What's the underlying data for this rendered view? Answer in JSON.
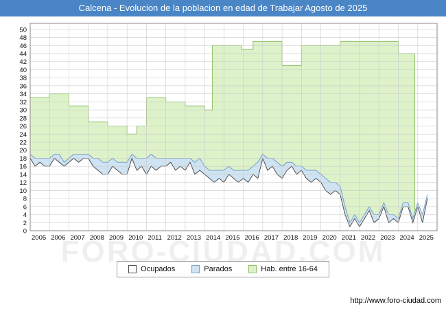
{
  "title": "Calcena - Evolucion de la poblacion en edad de Trabajar Agosto de 2025",
  "watermark": "FORO-CIUDAD.COM",
  "footer": {
    "url": "http://www.foro-ciudad.com"
  },
  "colors": {
    "title_bar": "#4a86c6",
    "grid": "#c8c8c8",
    "axis_border": "#888888",
    "ocupados_stroke": "#4d4d4d",
    "ocupados_fill": "#ffffff",
    "parados_stroke": "#74a0c8",
    "parados_fill": "#cfe3f2",
    "hab_stroke": "#8fbf64",
    "hab_fill": "#ddf2c9"
  },
  "chart_data": {
    "type": "area",
    "title": "Calcena - Evolucion de la poblacion en edad de Trabajar Agosto de 2025",
    "xlabel": "",
    "ylabel": "",
    "grid": true,
    "legend_position": "bottom",
    "x_start": 2005,
    "x_step": 0.25,
    "xlim": [
      2005,
      2026
    ],
    "ylim": [
      0,
      51.5
    ],
    "x_ticks": [
      2005,
      2006,
      2007,
      2008,
      2009,
      2010,
      2011,
      2012,
      2013,
      2014,
      2015,
      2016,
      2017,
      2018,
      2019,
      2020,
      2021,
      2022,
      2023,
      2024,
      2025
    ],
    "y_ticks": [
      0,
      2,
      4,
      6,
      8,
      10,
      12,
      14,
      16,
      18,
      20,
      22,
      24,
      26,
      28,
      30,
      32,
      34,
      36,
      38,
      40,
      42,
      44,
      46,
      48,
      50
    ],
    "series": [
      {
        "name": "Ocupados",
        "type": "line-area",
        "stroke": "#4d4d4d",
        "fill": "#ffffff",
        "values": [
          18,
          16,
          17,
          16,
          16,
          18,
          17,
          16,
          17,
          18,
          17,
          18,
          18,
          16,
          15,
          14,
          14,
          16,
          15,
          14,
          14,
          18,
          15,
          16,
          14,
          16,
          15,
          16,
          16,
          17,
          15,
          16,
          15,
          17,
          14,
          15,
          14,
          13,
          12,
          13,
          12,
          14,
          13,
          12,
          13,
          12,
          14,
          13,
          18,
          15,
          16,
          14,
          13,
          15,
          16,
          14,
          15,
          13,
          12,
          13,
          12,
          10,
          9,
          10,
          9,
          4,
          1,
          3,
          1,
          3,
          5,
          2,
          3,
          6,
          2,
          3,
          2,
          6,
          6,
          2,
          6,
          2,
          8
        ]
      },
      {
        "name": "Parados",
        "type": "area-stacked-on-ocupados",
        "stroke": "#74a0c8",
        "fill": "#cfe3f2",
        "values": [
          1,
          2,
          1,
          2,
          2,
          1,
          2,
          1,
          1,
          1,
          2,
          1,
          1,
          2,
          3,
          3,
          3,
          2,
          2,
          3,
          3,
          1,
          3,
          2,
          4,
          3,
          3,
          2,
          2,
          1,
          3,
          2,
          3,
          1,
          3,
          3,
          2,
          2,
          3,
          2,
          3,
          2,
          2,
          3,
          2,
          3,
          2,
          4,
          1,
          3,
          2,
          3,
          3,
          2,
          1,
          2,
          1,
          2,
          3,
          2,
          2,
          3,
          3,
          2,
          2,
          2,
          1,
          1,
          1,
          1,
          1,
          2,
          1,
          1,
          2,
          1,
          1,
          1,
          1,
          1,
          1,
          2,
          1
        ]
      },
      {
        "name": "Hab. entre 16-64",
        "type": "step-area",
        "stroke": "#8fbf64",
        "fill": "#ddf2c9",
        "steps": [
          [
            2005,
            33
          ],
          [
            2006,
            34
          ],
          [
            2007,
            31
          ],
          [
            2008,
            27
          ],
          [
            2009,
            26
          ],
          [
            2010,
            24
          ],
          [
            2010.5,
            26
          ],
          [
            2011,
            33
          ],
          [
            2012,
            32
          ],
          [
            2013,
            31
          ],
          [
            2014,
            30
          ],
          [
            2014.4,
            46
          ],
          [
            2015.9,
            45
          ],
          [
            2016.5,
            47
          ],
          [
            2018,
            41
          ],
          [
            2019,
            46
          ],
          [
            2021,
            47
          ],
          [
            2024,
            44
          ],
          [
            2024.85,
            0
          ]
        ]
      }
    ]
  }
}
